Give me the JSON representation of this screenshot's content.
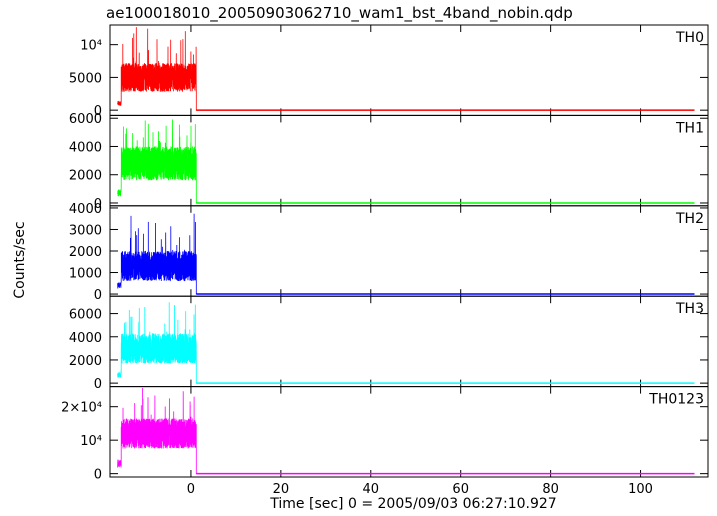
{
  "title": "ae100018010_20050903062710_wam1_bst_4band_nobin.qdp",
  "chart_data": {
    "type": "line",
    "xlabel": "Time [sec] 0 = 2005/09/03 06:27:10.927",
    "ylabel": "Counts/sec",
    "xlim": [
      -18,
      115
    ],
    "x_ticks": [
      0,
      20,
      40,
      60,
      80,
      100
    ],
    "x_tick_labels": [
      "0",
      "20",
      "40",
      "60",
      "80",
      "100"
    ],
    "burst_window": [
      -15.5,
      1.2
    ],
    "panels": [
      {
        "name": "TH0",
        "color": "#ff0000",
        "ylim": [
          -800,
          13000
        ],
        "y_ticks": [
          0,
          5000,
          10000
        ],
        "y_tick_labels": [
          "0",
          "5000",
          "10⁴"
        ],
        "pre_level": 1000,
        "mean": 5000,
        "spread": 2200,
        "peak": 13000,
        "post": 0
      },
      {
        "name": "TH1",
        "color": "#00ff00",
        "ylim": [
          -200,
          6200
        ],
        "y_ticks": [
          0,
          2000,
          4000,
          6000
        ],
        "y_tick_labels": [
          "0",
          "2000",
          "4000",
          "6000"
        ],
        "pre_level": 800,
        "mean": 2800,
        "spread": 1200,
        "peak": 6000,
        "post": 0
      },
      {
        "name": "TH2",
        "color": "#0000ff",
        "ylim": [
          -100,
          4100
        ],
        "y_ticks": [
          0,
          1000,
          2000,
          3000,
          4000
        ],
        "y_tick_labels": [
          "0",
          "1000",
          "2000",
          "3000",
          "4000"
        ],
        "pre_level": 400,
        "mean": 1300,
        "spread": 700,
        "peak": 3800,
        "post": 0
      },
      {
        "name": "TH3",
        "color": "#00ffff",
        "ylim": [
          -300,
          7500
        ],
        "y_ticks": [
          0,
          2000,
          4000,
          6000
        ],
        "y_tick_labels": [
          "0",
          "2000",
          "4000",
          "6000"
        ],
        "pre_level": 800,
        "mean": 3000,
        "spread": 1300,
        "peak": 7000,
        "post": 0
      },
      {
        "name": "TH0123",
        "color": "#ff00ff",
        "ylim": [
          -1000,
          26000
        ],
        "y_ticks": [
          0,
          10000,
          20000
        ],
        "y_tick_labels": [
          "0",
          "10⁴",
          "2×10⁴"
        ],
        "pre_level": 3000,
        "mean": 12000,
        "spread": 4500,
        "peak": 26000,
        "post": 0
      }
    ]
  }
}
